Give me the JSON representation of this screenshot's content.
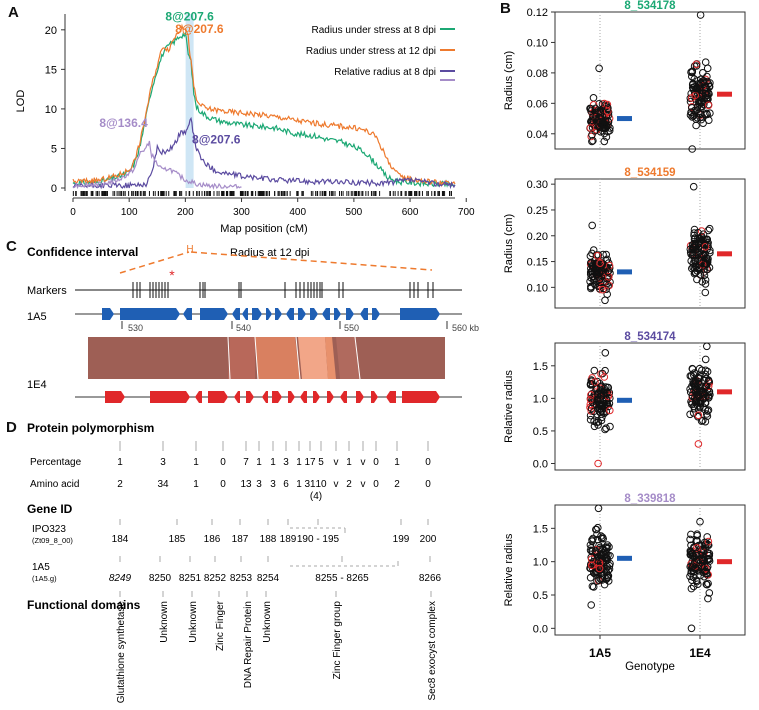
{
  "panels": {
    "A": "A",
    "B": "B",
    "C": "C",
    "D": "D"
  },
  "colors": {
    "green": "#1ca874",
    "orange": "#ee7a2e",
    "purple": "#5b4ba0",
    "lilac": "#a58cc8",
    "blue": "#1f5fb4",
    "red": "#e0282a",
    "brown": "#9e5f55",
    "pink": "#d98060",
    "salmon": "#f2a688"
  },
  "chart_data": [
    {
      "type": "line",
      "title": "",
      "xlabel": "Map position (cM)",
      "ylabel": "LOD",
      "xlim": [
        0,
        680
      ],
      "ylim": [
        0,
        22
      ],
      "xticks": [
        0,
        100,
        200,
        300,
        400,
        500,
        600,
        700
      ],
      "yticks": [
        0,
        5,
        10,
        15,
        20
      ],
      "legend_position": "top-right",
      "series": [
        {
          "name": "Radius under stress at 8 dpi",
          "color": "#1ca874",
          "x": [
            0,
            50,
            80,
            100,
            110,
            120,
            130,
            140,
            150,
            160,
            170,
            180,
            190,
            200,
            205,
            210,
            215,
            220,
            230,
            240,
            260,
            280,
            300,
            330,
            360,
            380,
            400,
            430,
            450,
            480,
            500,
            520,
            540,
            560,
            580,
            600,
            620,
            640,
            660,
            680
          ],
          "y": [
            0.6,
            0.8,
            1.4,
            2.0,
            3.2,
            5.5,
            9.0,
            12.5,
            15.0,
            17.0,
            18.0,
            18.5,
            19.2,
            19.5,
            17.0,
            16.0,
            12.0,
            10.2,
            9.5,
            9.0,
            8.5,
            8.2,
            8.0,
            7.8,
            7.6,
            7.2,
            6.8,
            6.6,
            6.2,
            5.8,
            5.2,
            4.5,
            3.0,
            1.3,
            0.8,
            0.7,
            0.6,
            0.5,
            0.5,
            0.4
          ]
        },
        {
          "name": "Radius under stress at 12 dpi",
          "color": "#ee7a2e",
          "x": [
            0,
            50,
            80,
            100,
            110,
            120,
            130,
            140,
            150,
            160,
            170,
            180,
            190,
            200,
            205,
            210,
            215,
            220,
            230,
            240,
            260,
            280,
            300,
            330,
            360,
            380,
            400,
            430,
            450,
            480,
            500,
            520,
            540,
            560,
            580,
            600,
            620,
            640,
            660,
            680
          ],
          "y": [
            0.8,
            1.0,
            1.6,
            2.3,
            3.5,
            6.0,
            9.5,
            13.0,
            15.5,
            18.0,
            17.5,
            19.0,
            20.0,
            20.4,
            19.0,
            16.0,
            13.0,
            11.0,
            10.3,
            10.0,
            9.8,
            9.6,
            9.5,
            9.3,
            9.0,
            8.8,
            8.5,
            8.2,
            8.0,
            7.8,
            7.6,
            7.3,
            6.5,
            3.5,
            1.5,
            1.2,
            0.9,
            0.8,
            0.6,
            0.5
          ]
        },
        {
          "name": "Relative radius at 8 dpi",
          "color": "#5b4ba0",
          "x": [
            0,
            50,
            100,
            130,
            140,
            145,
            150,
            160,
            170,
            180,
            190,
            200,
            205,
            210,
            215,
            220,
            230,
            240,
            260,
            300,
            350,
            400,
            450,
            500,
            550,
            600,
            650,
            680
          ],
          "y": [
            0.2,
            0.3,
            0.3,
            0.5,
            1.8,
            3.5,
            5.0,
            4.5,
            4.8,
            5.5,
            6.8,
            7.2,
            7.6,
            8.7,
            6.5,
            5.0,
            3.5,
            2.8,
            2.0,
            1.5,
            1.1,
            0.9,
            0.8,
            0.7,
            0.6,
            1.0,
            0.5,
            0.4
          ]
        },
        {
          "name": "",
          "color": "#a58cc8",
          "x": [
            0,
            50,
            80,
            100,
            110,
            120,
            130,
            136,
            140,
            150,
            160,
            170,
            180,
            190,
            200,
            210,
            220,
            240,
            260,
            280,
            300
          ],
          "y": [
            0.3,
            0.5,
            1.0,
            1.8,
            2.5,
            4.5,
            5.0,
            5.8,
            4.2,
            3.0,
            2.2,
            2.5,
            2.0,
            1.5,
            1.0,
            0.8,
            0.5,
            0.3,
            0.2,
            0.2,
            0.1
          ]
        }
      ],
      "annotations": [
        {
          "text": "8@207.6",
          "color": "#1ca874",
          "x": 207.6,
          "y": 21.2
        },
        {
          "text": "8@207.6",
          "color": "#ee7a2e",
          "x": 225,
          "y": 19.6
        },
        {
          "text": "8@136.4",
          "color": "#a58cc8",
          "x": 90,
          "y": 7.7
        },
        {
          "text": "8@207.6",
          "color": "#5b4ba0",
          "x": 255,
          "y": 5.6
        }
      ],
      "highlight_x": 207.6
    },
    {
      "type": "scatter",
      "title": "8_534178",
      "title_color": "#1ca874",
      "ylabel": "Radius (cm)",
      "ylim": [
        0.03,
        0.12
      ],
      "yticks": [
        0.04,
        0.06,
        0.08,
        0.1,
        0.12
      ],
      "ytick_labels": [
        "0.04",
        "0.06",
        "0.08",
        "0.10",
        "0.12"
      ],
      "groups": [
        {
          "name": "1A5",
          "center": 0.05,
          "spread": 0.008,
          "min": 0.035,
          "max": 0.083
        },
        {
          "name": "1E4",
          "center": 0.066,
          "spread": 0.014,
          "min": 0.03,
          "max": 0.118
        }
      ],
      "means": [
        0.05,
        0.066
      ]
    },
    {
      "type": "scatter",
      "title": "8_534159",
      "title_color": "#ee7a2e",
      "ylabel": "Radius (cm)",
      "ylim": [
        0.06,
        0.31
      ],
      "yticks": [
        0.1,
        0.15,
        0.2,
        0.25,
        0.3
      ],
      "ytick_labels": [
        "0.10",
        "0.15",
        "0.20",
        "0.25",
        "0.30"
      ],
      "groups": [
        {
          "name": "1A5",
          "center": 0.13,
          "spread": 0.022,
          "min": 0.075,
          "max": 0.22
        },
        {
          "name": "1E4",
          "center": 0.165,
          "spread": 0.035,
          "min": 0.09,
          "max": 0.295
        }
      ],
      "means": [
        0.13,
        0.165
      ]
    },
    {
      "type": "scatter",
      "title": "8_534174",
      "title_color": "#5b4ba0",
      "ylabel": "Relative radius",
      "ylim": [
        -0.1,
        1.85
      ],
      "yticks": [
        0.0,
        0.5,
        1.0,
        1.5
      ],
      "ytick_labels": [
        "0.0",
        "0.5",
        "1.0",
        "1.5"
      ],
      "groups": [
        {
          "name": "1A5",
          "center": 0.97,
          "spread": 0.25,
          "min": 0.0,
          "max": 1.7
        },
        {
          "name": "1E4",
          "center": 1.1,
          "spread": 0.28,
          "min": 0.3,
          "max": 1.8
        }
      ],
      "means": [
        0.97,
        1.1
      ]
    },
    {
      "type": "scatter",
      "title": "8_339818",
      "title_color": "#a58cc8",
      "ylabel": "Relative radius",
      "ylim": [
        -0.1,
        1.85
      ],
      "yticks": [
        0.0,
        0.5,
        1.0,
        1.5
      ],
      "ytick_labels": [
        "0.0",
        "0.5",
        "1.0",
        "1.5"
      ],
      "groups": [
        {
          "name": "1A5",
          "center": 1.05,
          "spread": 0.28,
          "min": 0.35,
          "max": 1.8
        },
        {
          "name": "1E4",
          "center": 1.0,
          "spread": 0.28,
          "min": 0.0,
          "max": 1.6
        }
      ],
      "means": [
        1.05,
        1.0
      ],
      "xlabel": "Genotype",
      "xtick_labels": [
        "1A5",
        "1E4"
      ]
    }
  ],
  "panelC": {
    "ci_label": "Confidence interval",
    "ci_trait": "Radius at 12 dpi",
    "markers_label": "Markers",
    "track1": "1A5",
    "track2": "1E4",
    "kb_ticks": [
      "530",
      "540",
      "550",
      "560 kb"
    ]
  },
  "panelD": {
    "title": "Protein polymorphism",
    "row_percentage": "Percentage",
    "row_aa": "Amino acid",
    "gene_id": "Gene ID",
    "ipo_label": "IPO323",
    "ipo_sub": "(Zt09_8_00)",
    "a5_label": "1A5",
    "a5_sub": "(1A5.g)",
    "func_label": "Functional domains",
    "percentages": [
      "1",
      "3",
      "1",
      "0",
      "7",
      "1",
      "1",
      "3",
      "1",
      "17",
      "5",
      "v",
      "1",
      "v",
      "0",
      "1",
      "0"
    ],
    "aminoacids": [
      "2",
      "34",
      "1",
      "0",
      "13",
      "3",
      "3",
      "6",
      "1",
      "31",
      "10",
      "v",
      "2",
      "v",
      "0",
      "2",
      "0"
    ],
    "aa_note": "(4)",
    "ipo_ids": [
      "184",
      "185",
      "186",
      "187",
      "188",
      "189",
      "190 - 195",
      "199",
      "200"
    ],
    "a5_ids": [
      "8249",
      "8250",
      "8251",
      "8252",
      "8253",
      "8254",
      "8255 - 8265",
      "8266"
    ],
    "domains": [
      "Glutathione synthetase",
      "Unknown",
      "Unknown",
      "Zinc Finger",
      "DNA Repair Protein",
      "Unknown",
      "Zinc Finger group",
      "Sec8 exocyst complex"
    ]
  }
}
